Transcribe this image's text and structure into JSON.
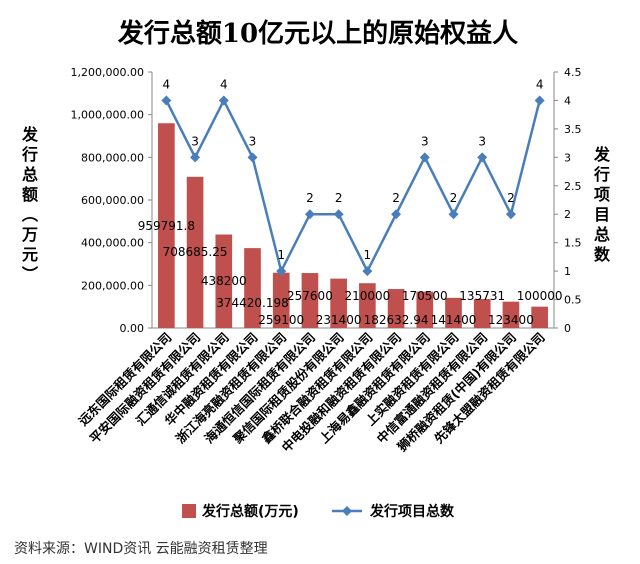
{
  "chart_data": {
    "type": "bar",
    "title": "发行总额10亿元以上的原始权益人",
    "ylabel": "发行总额（万元）",
    "y2label": "发行项目总数",
    "ylim": [
      0,
      1200000
    ],
    "y2lim": [
      0,
      4.5
    ],
    "yticks": [
      "0.00",
      "200,000.00",
      "400,000.00",
      "600,000.00",
      "800,000.00",
      "1,000,000.00",
      "1,200,000.00"
    ],
    "y2ticks": [
      "0",
      "0.5",
      "1",
      "1.5",
      "2",
      "2.5",
      "3",
      "3.5",
      "4",
      "4.5"
    ],
    "categories": [
      "远东国际租赁有限公司",
      "平安国际融资租赁有限公司",
      "汇通信诚租赁有限公司",
      "华中融资租赁有限公司",
      "浙江海亮融资租赁有限公司",
      "海通恒信国际租赁有限公司",
      "聚信国际租赁股份有限公司",
      "鑫桥联合融资租赁有限公司",
      "中电投融和融资租赁有限公司",
      "上海易鑫融资租赁有限公司",
      "上实融资租赁有限公司",
      "中信富通融资租赁有限公司",
      "狮桥融资租赁(中国)有限公司",
      "先锋太盟融资租赁有限公司"
    ],
    "series": [
      {
        "name": "发行总额(万元)",
        "type": "bar",
        "color": "#c0504d",
        "values": [
          959791.8,
          708685.25,
          438200,
          374420.198,
          259100,
          257600,
          231400,
          210000,
          182632.94,
          170500,
          141400,
          135731,
          123400,
          100000
        ],
        "labels": [
          "959791.8",
          "708685.25",
          "438200",
          "374420.198",
          "259100",
          "257600",
          "231400",
          "210000",
          "182632.94",
          "170500",
          "141400",
          "135731",
          "123400",
          "100000"
        ]
      },
      {
        "name": "发行项目总数",
        "type": "line",
        "color": "#4a7ebb",
        "values": [
          4,
          3,
          4,
          3,
          1,
          2,
          2,
          1,
          2,
          3,
          2,
          3,
          2,
          4
        ],
        "labels": [
          "4",
          "3",
          "4",
          "3",
          "1",
          "2",
          "2",
          "1",
          "2",
          "3",
          "2",
          "3",
          "2",
          "4"
        ]
      }
    ],
    "legend_position": "bottom"
  },
  "footer": "资料来源：WIND资讯 云能融资租赁整理",
  "watermark": "云能融资租赁"
}
